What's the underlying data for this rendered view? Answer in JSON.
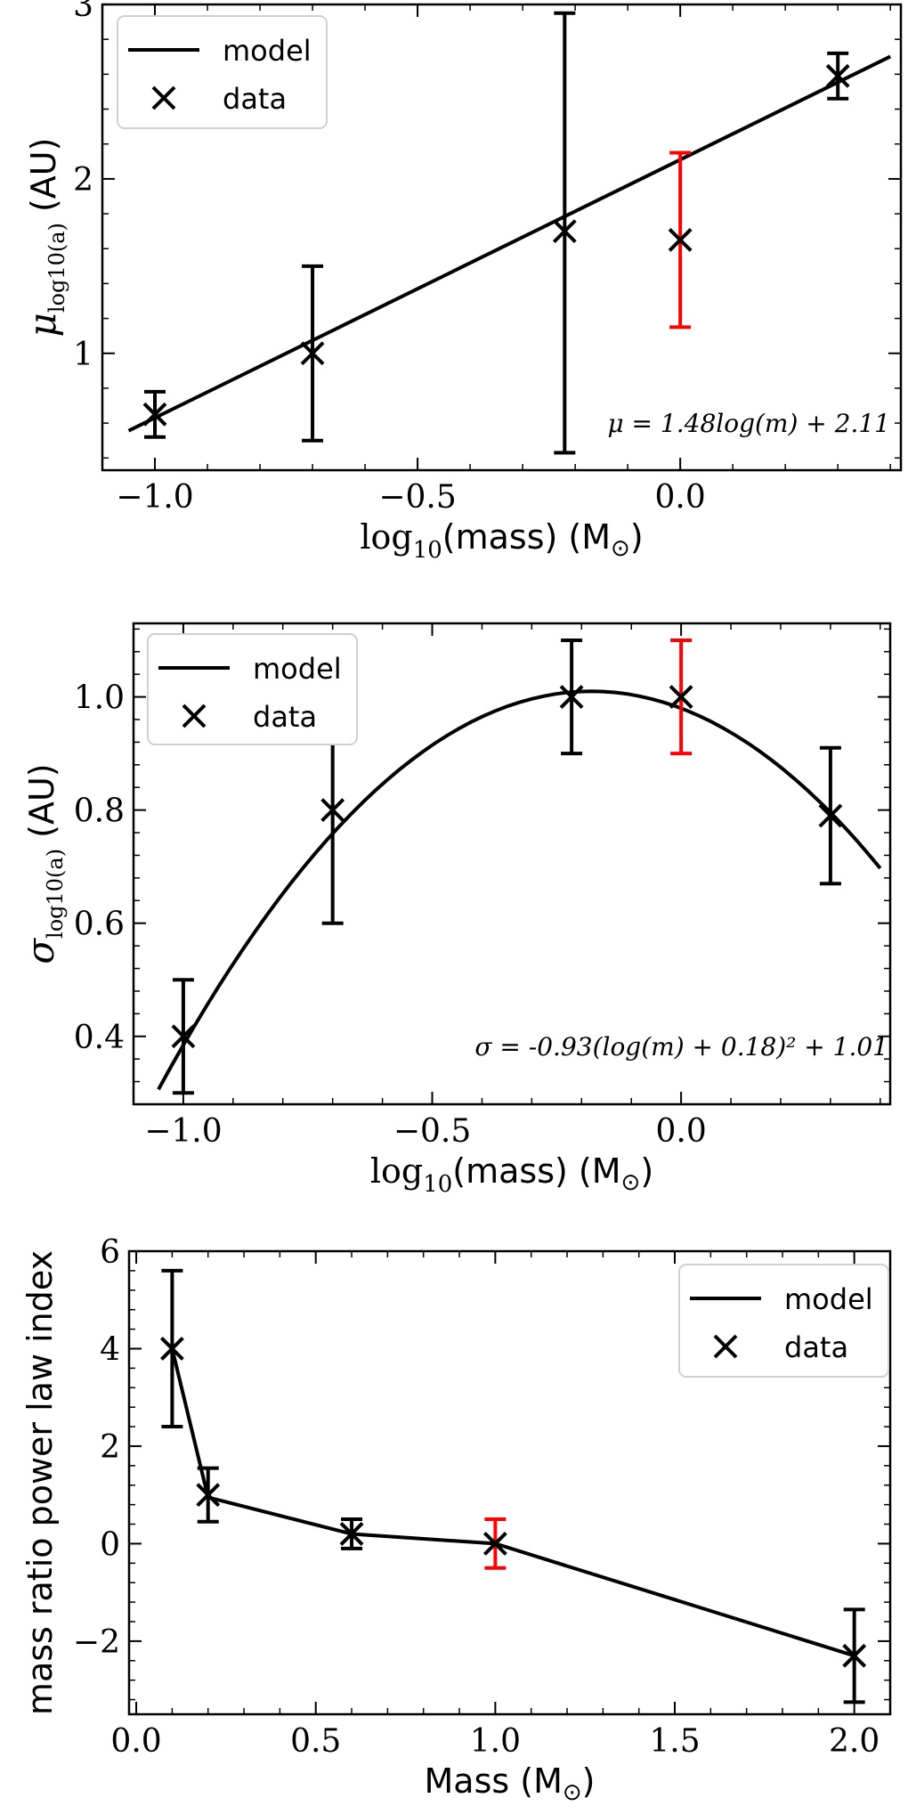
{
  "colors": {
    "data": "#000000",
    "highlight": "#ff0000",
    "model": "#000000",
    "axis": "#000000"
  },
  "legend_common": {
    "model_label": "model",
    "data_label": "data"
  },
  "chart_data": [
    {
      "id": "mu",
      "type": "scatter",
      "xlabel": {
        "pre": "log",
        "sub": "10",
        "post": "(mass) (M",
        "sun": "⊙",
        "close": ")"
      },
      "ylabel": {
        "sym": "μ",
        "sub": "log10(a)",
        "unit": " (AU)"
      },
      "xlim": [
        -1.1,
        0.42
      ],
      "ylim": [
        0.33,
        3.0
      ],
      "xticks": [
        -1.0,
        -0.5,
        0.0
      ],
      "xtick_labels": [
        "−1.0",
        "−0.5",
        "0.0"
      ],
      "yticks": [
        1,
        2,
        3
      ],
      "ytick_labels": [
        "1",
        "2",
        "3"
      ],
      "legend": "top-left",
      "annotation": "μ = 1.48log(m) + 2.11",
      "model": {
        "kind": "linear",
        "slope": 1.48,
        "intercept": 2.11,
        "x_range": [
          -1.05,
          0.4
        ]
      },
      "points": [
        {
          "x": -1.0,
          "y": 0.65,
          "err_low": 0.13,
          "err_high": 0.13,
          "highlight": false
        },
        {
          "x": -0.7,
          "y": 1.0,
          "err_low": 0.5,
          "err_high": 0.5,
          "highlight": false
        },
        {
          "x": -0.22,
          "y": 1.7,
          "err_low": 1.27,
          "err_high": 1.25,
          "highlight": false
        },
        {
          "x": 0.0,
          "y": 1.65,
          "err_low": 0.5,
          "err_high": 0.5,
          "highlight": true
        },
        {
          "x": 0.3,
          "y": 2.59,
          "err_low": 0.13,
          "err_high": 0.13,
          "highlight": false
        }
      ]
    },
    {
      "id": "sigma",
      "type": "scatter",
      "xlabel": {
        "pre": "log",
        "sub": "10",
        "post": "(mass) (M",
        "sun": "⊙",
        "close": ")"
      },
      "ylabel": {
        "sym": "σ",
        "sub": "log10(a)",
        "unit": " (AU)"
      },
      "xlim": [
        -1.1,
        0.42
      ],
      "ylim": [
        0.28,
        1.13
      ],
      "xticks": [
        -1.0,
        -0.5,
        0.0
      ],
      "xtick_labels": [
        "−1.0",
        "−0.5",
        "0.0"
      ],
      "yticks": [
        0.4,
        0.6,
        0.8,
        1.0
      ],
      "ytick_labels": [
        "0.4",
        "0.6",
        "0.8",
        "1.0"
      ],
      "legend": "top-left",
      "annotation": "σ = -0.93(log(m) + 0.18)² + 1.01",
      "model": {
        "kind": "quadratic",
        "a": -0.93,
        "shift": 0.18,
        "c": 1.01,
        "x_range": [
          -1.05,
          0.4
        ]
      },
      "points": [
        {
          "x": -1.0,
          "y": 0.4,
          "err_low": 0.1,
          "err_high": 0.1,
          "highlight": false
        },
        {
          "x": -0.7,
          "y": 0.8,
          "err_low": 0.2,
          "err_high": 0.2,
          "highlight": false
        },
        {
          "x": -0.22,
          "y": 1.0,
          "err_low": 0.1,
          "err_high": 0.1,
          "highlight": false
        },
        {
          "x": 0.0,
          "y": 1.0,
          "err_low": 0.1,
          "err_high": 0.1,
          "highlight": true
        },
        {
          "x": 0.3,
          "y": 0.79,
          "err_low": 0.12,
          "err_high": 0.12,
          "highlight": false
        }
      ]
    },
    {
      "id": "gamma",
      "type": "scatter",
      "xlabel": {
        "pre": "",
        "sub": "",
        "post": "Mass (M",
        "sun": "⊙",
        "close": ")"
      },
      "ylabel": {
        "text": "mass ratio power law index"
      },
      "xlim": [
        -0.02,
        2.1
      ],
      "ylim": [
        -3.5,
        6.0
      ],
      "xticks": [
        0.0,
        0.5,
        1.0,
        1.5,
        2.0
      ],
      "xtick_labels": [
        "0.0",
        "0.5",
        "1.0",
        "1.5",
        "2.0"
      ],
      "yticks": [
        -2,
        0,
        2,
        4,
        6
      ],
      "ytick_labels": [
        "−2",
        "0",
        "2",
        "4",
        "6"
      ],
      "legend": "top-right",
      "annotation": "",
      "model": {
        "kind": "polyline",
        "x": [
          0.1,
          0.2,
          0.6,
          1.0,
          2.0
        ],
        "y": [
          4.0,
          0.95,
          0.2,
          0.0,
          -2.3
        ]
      },
      "points": [
        {
          "x": 0.1,
          "y": 4.0,
          "err_low": 1.6,
          "err_high": 1.6,
          "highlight": false
        },
        {
          "x": 0.2,
          "y": 1.0,
          "err_low": 0.55,
          "err_high": 0.55,
          "highlight": false
        },
        {
          "x": 0.6,
          "y": 0.2,
          "err_low": 0.3,
          "err_high": 0.3,
          "highlight": false
        },
        {
          "x": 1.0,
          "y": 0.0,
          "err_low": 0.5,
          "err_high": 0.5,
          "highlight": true
        },
        {
          "x": 2.0,
          "y": -2.3,
          "err_low": 0.95,
          "err_high": 0.95,
          "highlight": false
        }
      ]
    }
  ]
}
